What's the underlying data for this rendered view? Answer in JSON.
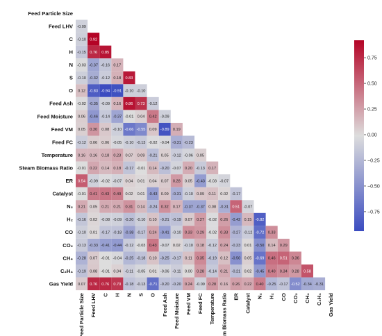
{
  "chart_data": {
    "type": "heatmap",
    "variables": [
      "Feed Particle Size",
      "Feed LHV",
      "C",
      "H",
      "N",
      "S",
      "O",
      "Feed Ash",
      "Feed Moisture",
      "Feed VM",
      "Feed FC",
      "Temperature",
      "Steam Biomass Ratio",
      "ER",
      "Catalyst",
      "N₂",
      "H₂",
      "CO",
      "CO₂",
      "CH₄",
      "C₂H₄",
      "Gas Yield"
    ],
    "matrix_lower": [
      [],
      [
        -0.09
      ],
      [
        -0.1,
        0.92
      ],
      [
        -0.15,
        0.76,
        0.85
      ],
      [
        -0.03,
        -0.37,
        -0.16,
        0.17
      ],
      [
        -0.1,
        -0.32,
        -0.12,
        0.18,
        0.83
      ],
      [
        0.12,
        -0.83,
        -0.94,
        -0.91,
        -0.1,
        -0.1
      ],
      [
        -0.02,
        -0.35,
        -0.09,
        0.16,
        0.86,
        0.73,
        -0.12
      ],
      [
        0.06,
        -0.46,
        -0.14,
        -0.37,
        -0.01,
        0.04,
        0.42,
        -0.09
      ],
      [
        0.05,
        0.3,
        0.08,
        -0.1,
        -0.66,
        -0.55,
        0.09,
        -0.89,
        0.19
      ],
      [
        -0.12,
        0.06,
        0.06,
        -0.05,
        -0.1,
        -0.13,
        -0.02,
        -0.04,
        -0.31,
        -0.23
      ],
      [
        0.16,
        0.16,
        0.18,
        0.23,
        0.07,
        0.09,
        -0.21,
        0.05,
        -0.12,
        -0.06,
        0.05
      ],
      [
        -0.01,
        0.22,
        0.14,
        0.18,
        -0.17,
        -0.01,
        0.14,
        -0.2,
        -0.07,
        0.2,
        -0.13,
        0.17
      ],
      [
        0.54,
        -0.09,
        -0.02,
        -0.07,
        0.04,
        0.01,
        0.04,
        0.07,
        0.28,
        0.05,
        -0.43,
        -0.03,
        -0.07
      ],
      [
        -0.01,
        0.41,
        0.43,
        0.4,
        0.02,
        0.01,
        -0.43,
        0.09,
        -0.31,
        -0.1,
        0.09,
        0.11,
        0.02,
        -0.17
      ],
      [
        0.21,
        0.05,
        0.21,
        0.21,
        0.31,
        0.14,
        -0.24,
        0.32,
        0.17,
        -0.37,
        -0.37,
        0.08,
        -0.31,
        0.51,
        -0.07
      ],
      [
        -0.16,
        0.02,
        -0.08,
        -0.09,
        -0.2,
        -0.1,
        0.1,
        -0.21,
        -0.19,
        0.07,
        0.27,
        -0.02,
        0.26,
        -0.42,
        0.15,
        -0.82
      ],
      [
        -0.1,
        0.01,
        -0.17,
        -0.18,
        -0.38,
        -0.17,
        0.24,
        -0.41,
        -0.1,
        0.33,
        0.29,
        -0.02,
        0.33,
        -0.27,
        -0.12,
        -0.72,
        0.33
      ],
      [
        -0.13,
        -0.33,
        -0.41,
        -0.44,
        -0.12,
        -0.03,
        0.43,
        -0.07,
        0.02,
        -0.1,
        0.18,
        -0.12,
        0.24,
        -0.23,
        0.01,
        -0.5,
        0.14,
        0.29
      ],
      [
        -0.28,
        0.07,
        -0.01,
        -0.04,
        -0.25,
        -0.18,
        0.1,
        -0.25,
        -0.17,
        0.11,
        0.35,
        -0.19,
        0.12,
        -0.5,
        0.05,
        -0.69,
        0.46,
        0.51,
        0.36
      ],
      [
        -0.19,
        0.08,
        -0.01,
        0.04,
        -0.11,
        -0.05,
        0.01,
        -0.06,
        -0.11,
        0.0,
        0.28,
        -0.14,
        0.21,
        -0.21,
        0.02,
        -0.45,
        0.4,
        0.34,
        0.28,
        0.58
      ],
      [
        0.07,
        0.76,
        0.76,
        0.7,
        -0.18,
        -0.13,
        -0.71,
        -0.2,
        -0.2,
        0.24,
        -0.09,
        0.28,
        0.16,
        0.26,
        0.22,
        0.4,
        -0.25,
        -0.17,
        -0.52,
        -0.34,
        -0.31
      ]
    ],
    "colorbar": {
      "colormap": "coolwarm",
      "vmin": -0.94,
      "vmax": 0.92,
      "ticks": [
        "0.75",
        "0.50",
        "0.25",
        "0.00",
        "−0.25",
        "−0.50",
        "−0.75"
      ]
    },
    "colors": {
      "cold": "#3b4cc0",
      "neutral": "#dddddd",
      "hot": "#b40426"
    },
    "value_text_colors": {
      "dark": "#222222",
      "light": "#ffffff"
    }
  }
}
